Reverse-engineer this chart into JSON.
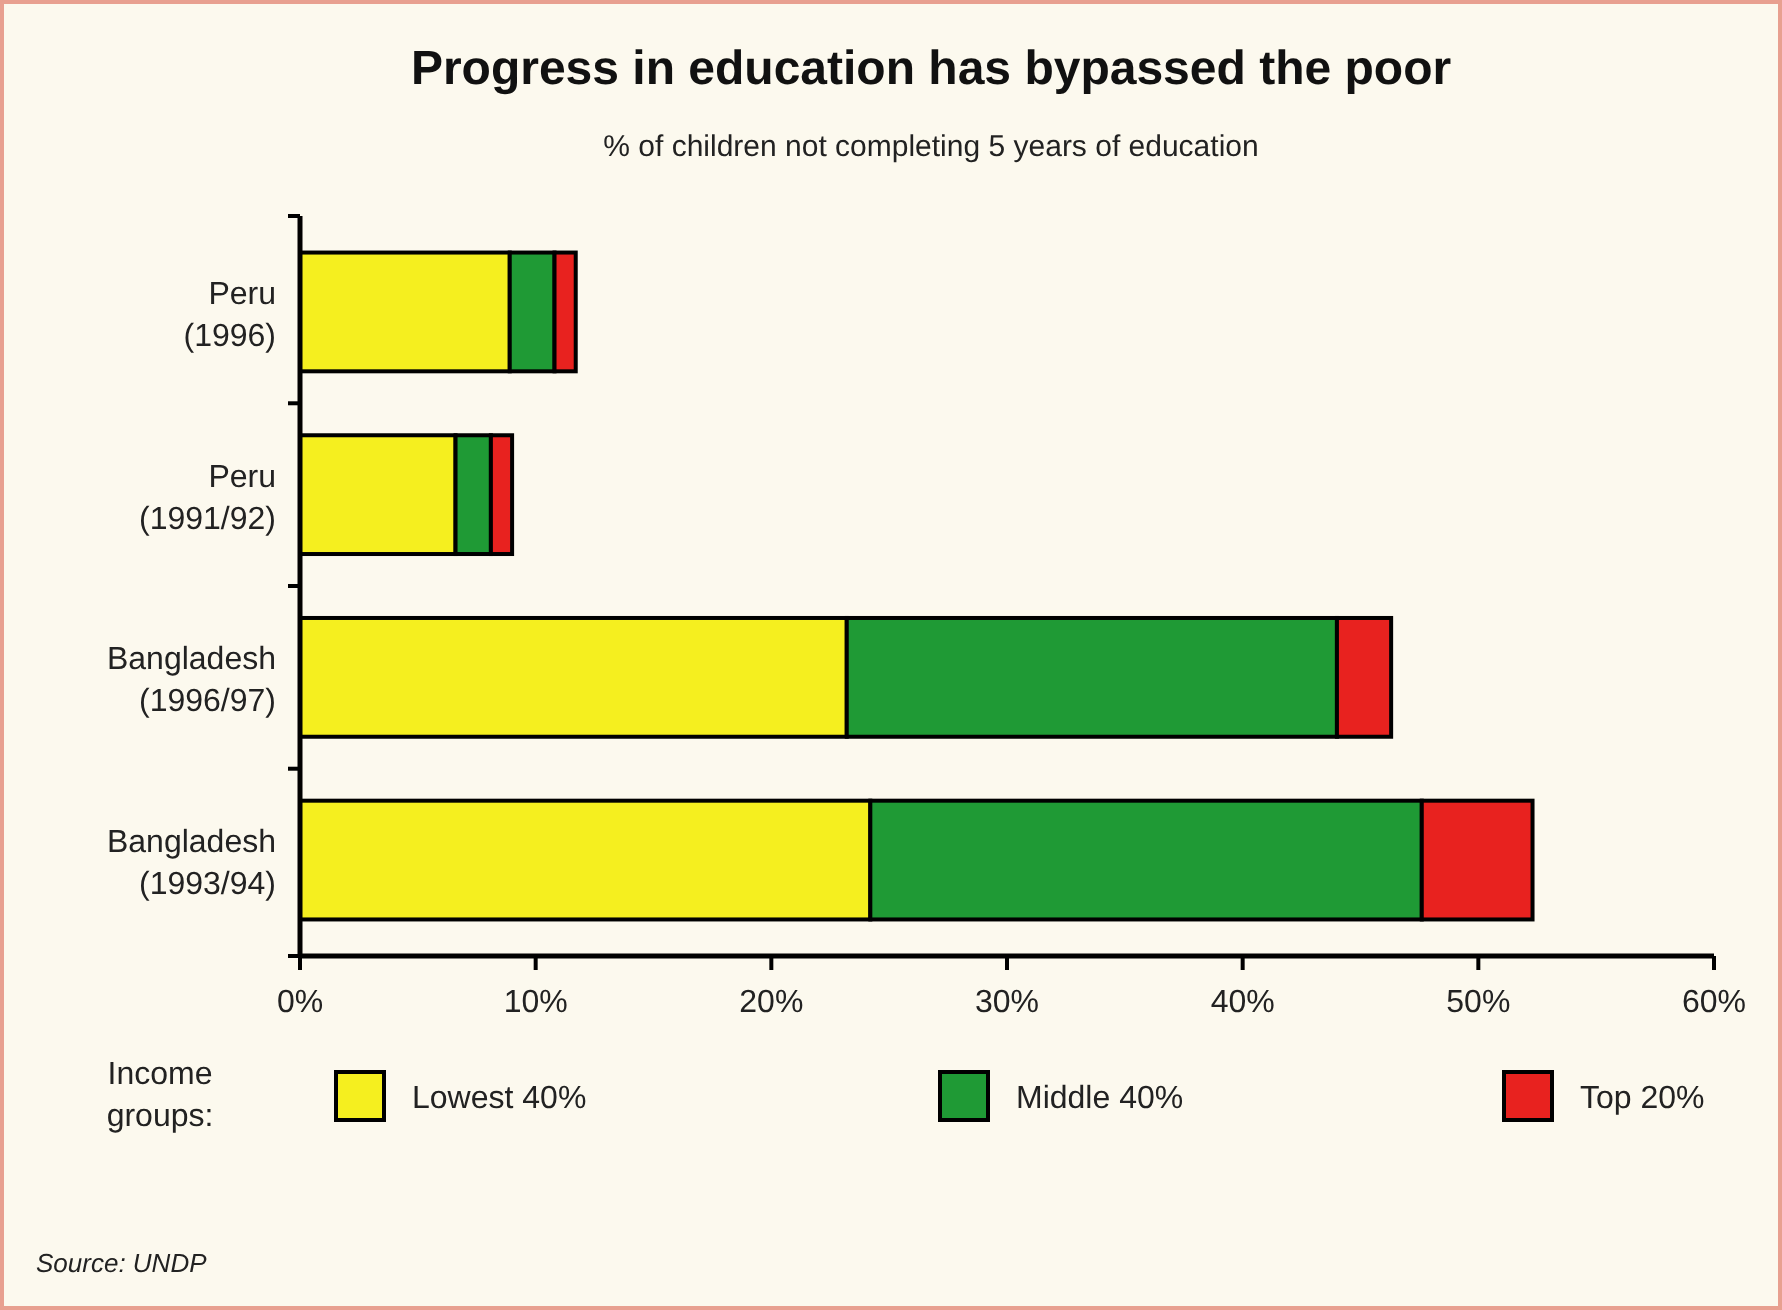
{
  "chart_data": {
    "type": "bar",
    "orientation": "horizontal",
    "stacked": true,
    "title": "Progress in education has bypassed the poor",
    "subtitle": "% of children not completing 5 years of education",
    "categories": [
      "Peru (1996)",
      "Peru (1991/92)",
      "Bangladesh (1996/97)",
      "Bangladesh (1993/94)"
    ],
    "series": [
      {
        "name": "Lowest 40%",
        "color": "#f5ef1f",
        "values": [
          8.9,
          6.6,
          23.2,
          24.2
        ]
      },
      {
        "name": "Middle 40%",
        "color": "#1f9a35",
        "values": [
          1.9,
          1.5,
          20.8,
          23.4
        ]
      },
      {
        "name": "Top 20%",
        "color": "#e8221f",
        "values": [
          0.9,
          0.9,
          2.3,
          4.7
        ]
      }
    ],
    "xlim": [
      0,
      60
    ],
    "xticks": [
      {
        "value": 0,
        "label": "0%"
      },
      {
        "value": 10,
        "label": "10%"
      },
      {
        "value": 20,
        "label": "20%"
      },
      {
        "value": 30,
        "label": "30%"
      },
      {
        "value": 40,
        "label": "40%"
      },
      {
        "value": 50,
        "label": "50%"
      },
      {
        "value": 60,
        "label": "60%"
      }
    ],
    "legend": "bottom",
    "legend_title": "Income groups:",
    "grid": false,
    "annotations": [
      "Source: UNDP"
    ]
  }
}
